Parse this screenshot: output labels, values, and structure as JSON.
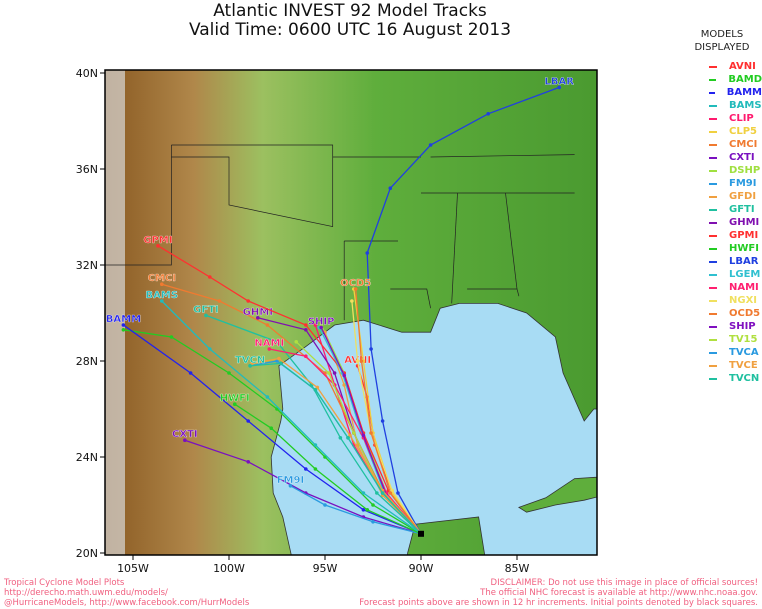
{
  "title": {
    "line1": "Atlantic INVEST 92 Model Tracks",
    "line2": "Valid Time: 0600 UTC 16 August 2013"
  },
  "legend": {
    "header1": "MODELS",
    "header2": "DISPLAYED",
    "models": [
      {
        "name": "AVNI",
        "color": "#ff3030"
      },
      {
        "name": "BAMD",
        "color": "#22cc22"
      },
      {
        "name": "BAMM",
        "color": "#2222ee"
      },
      {
        "name": "BAMS",
        "color": "#22bbbb"
      },
      {
        "name": "CLIP",
        "color": "#ff1a6e"
      },
      {
        "name": "CLP5",
        "color": "#f0d040"
      },
      {
        "name": "CMCI",
        "color": "#f07a30"
      },
      {
        "name": "CXTI",
        "color": "#7a10c0"
      },
      {
        "name": "DSHP",
        "color": "#a0e040"
      },
      {
        "name": "FM9I",
        "color": "#2a9ae0"
      },
      {
        "name": "GFDI",
        "color": "#f0a040"
      },
      {
        "name": "GFTI",
        "color": "#20c0a0"
      },
      {
        "name": "GHMI",
        "color": "#8010b0"
      },
      {
        "name": "GPMI",
        "color": "#ff3030"
      },
      {
        "name": "HWFI",
        "color": "#22cc22"
      },
      {
        "name": "LBAR",
        "color": "#2040e0"
      },
      {
        "name": "LGEM",
        "color": "#30c0d0"
      },
      {
        "name": "NAMI",
        "color": "#ff2070"
      },
      {
        "name": "NGXI",
        "color": "#f0e060"
      },
      {
        "name": "OCD5",
        "color": "#f07a30"
      },
      {
        "name": "SHIP",
        "color": "#8010c0"
      },
      {
        "name": "TV15",
        "color": "#b0e040"
      },
      {
        "name": "TVCA",
        "color": "#2a9ae0"
      },
      {
        "name": "TVCE",
        "color": "#f0a040"
      },
      {
        "name": "TVCN",
        "color": "#20c0a0"
      }
    ]
  },
  "map": {
    "lon_range": [
      -106,
      -81
    ],
    "lat_range": [
      20,
      40
    ],
    "lat_ticks": [
      "20N",
      "24N",
      "28N",
      "32N",
      "36N",
      "40N"
    ],
    "lon_ticks": [
      "105W",
      "100W",
      "95W",
      "90W",
      "85W"
    ],
    "colors": {
      "water": "#a8dcf4",
      "land_east": "#5fae3c",
      "land_west": "#9a6a2a"
    },
    "initial_point": [
      -90.0,
      20.8
    ],
    "tracks": [
      {
        "model": "AVNI",
        "label": true,
        "points": [
          [
            -90,
            20.8
          ],
          [
            -91.5,
            22.5
          ],
          [
            -92.4,
            24.5
          ],
          [
            -92.8,
            26.5
          ],
          [
            -93.3,
            27.8
          ]
        ]
      },
      {
        "model": "BAMD",
        "label": false,
        "points": [
          [
            -90,
            20.8
          ],
          [
            -92.5,
            22
          ],
          [
            -95,
            24
          ],
          [
            -97.5,
            26
          ],
          [
            -100,
            27.5
          ],
          [
            -103,
            29
          ],
          [
            -105.5,
            29.3
          ]
        ]
      },
      {
        "model": "BAMM",
        "label": true,
        "points": [
          [
            -90,
            20.8
          ],
          [
            -93,
            21.8
          ],
          [
            -96,
            23.5
          ],
          [
            -99,
            25.5
          ],
          [
            -102,
            27.5
          ],
          [
            -105.5,
            29.5
          ]
        ]
      },
      {
        "model": "BAMS",
        "label": true,
        "points": [
          [
            -90,
            20.8
          ],
          [
            -93,
            22.5
          ],
          [
            -95.5,
            24.5
          ],
          [
            -98,
            26.5
          ],
          [
            -101,
            28.5
          ],
          [
            -103.5,
            30.5
          ]
        ]
      },
      {
        "model": "CLIP",
        "label": false,
        "points": [
          [
            -90,
            20.8
          ],
          [
            -92,
            22.5
          ],
          [
            -93.5,
            24.5
          ],
          [
            -94.5,
            27
          ],
          [
            -95.5,
            29.5
          ]
        ]
      },
      {
        "model": "CLP5",
        "label": false,
        "points": [
          [
            -90,
            20.8
          ],
          [
            -91.5,
            22.5
          ],
          [
            -92.5,
            25
          ],
          [
            -93,
            28
          ],
          [
            -93.5,
            31
          ]
        ]
      },
      {
        "model": "CMCI",
        "label": true,
        "points": [
          [
            -90,
            20.8
          ],
          [
            -92,
            22.6
          ],
          [
            -93.5,
            25
          ],
          [
            -95,
            27.5
          ],
          [
            -98,
            29.5
          ],
          [
            -100.5,
            30.5
          ],
          [
            -103.5,
            31.2
          ]
        ]
      },
      {
        "model": "CXTI",
        "label": true,
        "points": [
          [
            -90,
            20.8
          ],
          [
            -93,
            21.5
          ],
          [
            -96,
            22.5
          ],
          [
            -99,
            23.8
          ],
          [
            -102.3,
            24.7
          ]
        ]
      },
      {
        "model": "DSHP",
        "label": false,
        "points": [
          [
            -90,
            20.8
          ],
          [
            -91.8,
            22.5
          ],
          [
            -93,
            25
          ],
          [
            -94,
            27.5
          ],
          [
            -95.2,
            29.5
          ]
        ]
      },
      {
        "model": "FM9I",
        "label": true,
        "points": [
          [
            -90,
            20.8
          ],
          [
            -92.5,
            21.3
          ],
          [
            -95,
            22
          ],
          [
            -96.8,
            22.8
          ]
        ]
      },
      {
        "model": "GFDI",
        "label": false,
        "points": [
          [
            -90,
            20.8
          ],
          [
            -92,
            22.4
          ],
          [
            -93.3,
            24.5
          ],
          [
            -94,
            27
          ],
          [
            -95,
            29.2
          ]
        ]
      },
      {
        "model": "GFTI",
        "label": true,
        "points": [
          [
            -90,
            20.8
          ],
          [
            -92.3,
            22.5
          ],
          [
            -94.2,
            24.8
          ],
          [
            -95.7,
            27
          ],
          [
            -97.5,
            28.8
          ],
          [
            -101.2,
            29.9
          ]
        ]
      },
      {
        "model": "GHMI",
        "label": true,
        "points": [
          [
            -90,
            20.8
          ],
          [
            -92,
            22.5
          ],
          [
            -93.5,
            25
          ],
          [
            -94.5,
            27.5
          ],
          [
            -96,
            29.3
          ],
          [
            -98.5,
            29.8
          ]
        ]
      },
      {
        "model": "GPMI",
        "label": true,
        "points": [
          [
            -90,
            20.8
          ],
          [
            -91.7,
            22.6
          ],
          [
            -93,
            25
          ],
          [
            -94,
            27.5
          ],
          [
            -96,
            29.5
          ],
          [
            -99,
            30.5
          ],
          [
            -101,
            31.5
          ],
          [
            -103.7,
            32.8
          ]
        ]
      },
      {
        "model": "HWFI",
        "label": true,
        "points": [
          [
            -90,
            20.8
          ],
          [
            -92.8,
            21.8
          ],
          [
            -95.5,
            23.5
          ],
          [
            -97.8,
            25.2
          ],
          [
            -99.7,
            26.2
          ]
        ]
      },
      {
        "model": "LBAR",
        "label": true,
        "points": [
          [
            -90,
            20.8
          ],
          [
            -91.2,
            22.5
          ],
          [
            -92,
            25.5
          ],
          [
            -92.6,
            28.5
          ],
          [
            -92.8,
            32.5
          ],
          [
            -91.6,
            35.2
          ],
          [
            -89.5,
            37
          ],
          [
            -86.5,
            38.3
          ],
          [
            -82.8,
            39.4
          ]
        ]
      },
      {
        "model": "LGEM",
        "label": false,
        "points": [
          [
            -90,
            20.8
          ],
          [
            -91.9,
            22.5
          ],
          [
            -93.1,
            25
          ],
          [
            -94.1,
            27.5
          ],
          [
            -95.3,
            29.4
          ]
        ]
      },
      {
        "model": "NAMI",
        "label": true,
        "points": [
          [
            -90,
            20.8
          ],
          [
            -91.8,
            22.5
          ],
          [
            -93,
            24.8
          ],
          [
            -94.5,
            27
          ],
          [
            -96,
            28.2
          ],
          [
            -97.9,
            28.5
          ]
        ]
      },
      {
        "model": "NGXI",
        "label": false,
        "points": [
          [
            -90,
            20.8
          ],
          [
            -91.5,
            22.6
          ],
          [
            -92.6,
            25
          ],
          [
            -93.3,
            28
          ],
          [
            -93.6,
            30.5
          ]
        ]
      },
      {
        "model": "OCD5",
        "label": true,
        "points": [
          [
            -90,
            20.8
          ],
          [
            -91.6,
            22.5
          ],
          [
            -92.6,
            25
          ],
          [
            -93.1,
            28
          ],
          [
            -93.4,
            31
          ]
        ]
      },
      {
        "model": "SHIP",
        "label": true,
        "points": [
          [
            -90,
            20.8
          ],
          [
            -91.8,
            22.4
          ],
          [
            -93,
            24.9
          ],
          [
            -94,
            27.4
          ],
          [
            -95.2,
            29.4
          ]
        ]
      },
      {
        "model": "TV15",
        "label": false,
        "points": [
          [
            -90,
            20.8
          ],
          [
            -92,
            22.5
          ],
          [
            -93.5,
            25
          ],
          [
            -94.8,
            27.5
          ],
          [
            -96.5,
            28.8
          ]
        ]
      },
      {
        "model": "TVCA",
        "label": false,
        "points": [
          [
            -90,
            20.8
          ],
          [
            -92,
            22.5
          ],
          [
            -93.8,
            24.8
          ],
          [
            -95.5,
            26.8
          ],
          [
            -97.5,
            28
          ],
          [
            -98.9,
            27.8
          ]
        ]
      },
      {
        "model": "TVCE",
        "label": false,
        "points": [
          [
            -90,
            20.8
          ],
          [
            -92,
            22.6
          ],
          [
            -93.7,
            24.9
          ],
          [
            -95.4,
            26.9
          ],
          [
            -97.4,
            28.1
          ],
          [
            -98.8,
            27.9
          ]
        ]
      },
      {
        "model": "TVCN",
        "label": true,
        "points": [
          [
            -90,
            20.8
          ],
          [
            -92,
            22.5
          ],
          [
            -93.8,
            24.8
          ],
          [
            -95.5,
            26.8
          ],
          [
            -97.3,
            27.9
          ],
          [
            -98.9,
            27.8
          ]
        ]
      }
    ]
  },
  "footer": {
    "left": [
      "Tropical Cyclone Model Plots",
      "http://derecho.math.uwm.edu/models/",
      "@HurricaneModels, http://www.facebook.com/HurrModels"
    ],
    "right": [
      "DISCLAIMER: Do not use this image in place of official sources!",
      "The official NHC forecast is available at http://www.nhc.noaa.gov.",
      "Forecast points above are shown in 12 hr increments. Initial points denoted by black squares."
    ]
  }
}
